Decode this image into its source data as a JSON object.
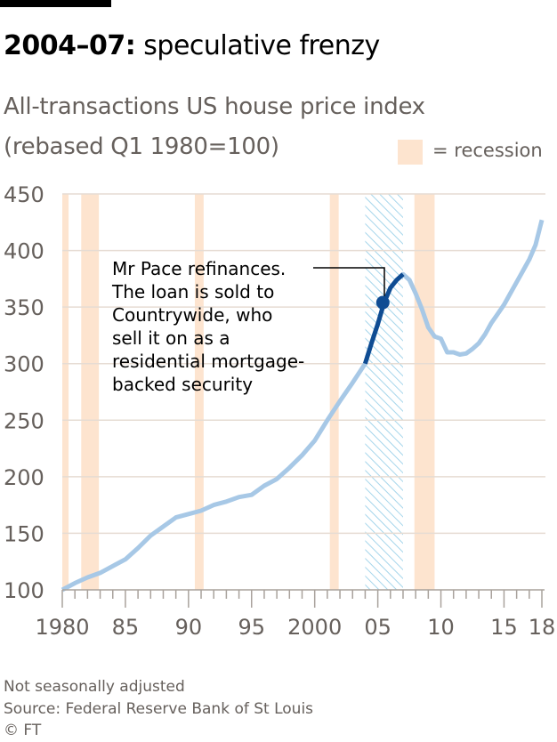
{
  "title_bold": "2004–07:",
  "title_rest": "speculative frenzy",
  "subtitle_line1": "All-transactions US house price index",
  "subtitle_line2": "(rebased Q1 1980=100)",
  "legend": {
    "label": "= recession",
    "color": "#fde4cf"
  },
  "annotation": [
    "Mr Pace refinances.",
    "The loan is sold to",
    "Countrywide, who",
    "sell it on as a",
    "residential mortgage-",
    "backed security"
  ],
  "footer": {
    "note": "Not seasonally adjusted",
    "source": "Source: Federal Reserve Bank of St Louis",
    "copyright": "© FT"
  },
  "chart_data": {
    "type": "line",
    "title": "All-transactions US house price index (rebased Q1 1980=100)",
    "ylim": [
      100,
      450
    ],
    "xlim": [
      1980,
      2018
    ],
    "yticks": [
      "100",
      "150",
      "200",
      "250",
      "300",
      "350",
      "400",
      "450"
    ],
    "xticks": [
      {
        "year": 1980,
        "label": "1980"
      },
      {
        "year": 1985,
        "label": "85"
      },
      {
        "year": 1990,
        "label": "90"
      },
      {
        "year": 1995,
        "label": "95"
      },
      {
        "year": 2000,
        "label": "2000"
      },
      {
        "year": 2005,
        "label": "05"
      },
      {
        "year": 2010,
        "label": "10"
      },
      {
        "year": 2015,
        "label": "15"
      },
      {
        "year": 2018,
        "label": "18"
      }
    ],
    "grid": true,
    "colors": {
      "line": "#a7c8e6",
      "highlight": "#0f4c93",
      "recession": "#fde4cf",
      "hatch": "#8fcbe6",
      "grid": "#e6dcd3"
    },
    "recessions": [
      [
        1980.0,
        1980.5
      ],
      [
        1981.5,
        1982.9
      ],
      [
        1990.5,
        1991.2
      ],
      [
        2001.2,
        2001.9
      ],
      [
        2007.9,
        2009.5
      ]
    ],
    "highlight_period": [
      2004.0,
      2007.0
    ],
    "marker": {
      "x": 2005.4,
      "y": 354
    },
    "x": [
      1980,
      1981,
      1982,
      1983,
      1984,
      1985,
      1986,
      1987,
      1988,
      1989,
      1990,
      1991,
      1992,
      1993,
      1994,
      1995,
      1996,
      1997,
      1998,
      1999,
      2000,
      2001,
      2002,
      2003,
      2004,
      2004.5,
      2005,
      2005.5,
      2006,
      2006.5,
      2007,
      2007.5,
      2008,
      2008.5,
      2009,
      2009.5,
      2010,
      2010.5,
      2011,
      2011.5,
      2012,
      2012.5,
      2013,
      2013.5,
      2014,
      2014.5,
      2015,
      2015.5,
      2016,
      2016.5,
      2017,
      2017.5,
      2018
    ],
    "y": [
      100,
      106,
      111,
      115,
      121,
      127,
      137,
      148,
      156,
      164,
      167,
      170,
      175,
      178,
      182,
      184,
      192,
      198,
      208,
      219,
      232,
      250,
      267,
      283,
      300,
      318,
      335,
      354,
      367,
      374,
      379,
      374,
      362,
      348,
      332,
      324,
      322,
      310,
      310,
      308,
      309,
      313,
      318,
      326,
      336,
      344,
      352,
      362,
      372,
      382,
      392,
      405,
      427
    ]
  }
}
